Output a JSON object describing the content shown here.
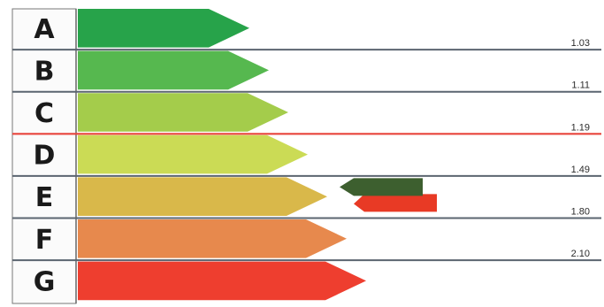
{
  "chart_data": {
    "type": "bar",
    "title": "",
    "categories": [
      "A",
      "B",
      "C",
      "D",
      "E",
      "F",
      "G"
    ],
    "colors": [
      "#27a34a",
      "#56b84f",
      "#a4cc4b",
      "#cbdb55",
      "#d9b84a",
      "#e7894d",
      "#ee3e2f"
    ],
    "thresholds": [
      "1.03",
      "1.11",
      "1.19",
      "1.49",
      "1.80",
      "2.10"
    ],
    "highlight_threshold": "1.19",
    "highlight_color": "#e8453c",
    "markers": [
      {
        "grade": "E",
        "color": "#3d5f2f"
      },
      {
        "grade": "E",
        "color": "#e83a25"
      }
    ]
  }
}
